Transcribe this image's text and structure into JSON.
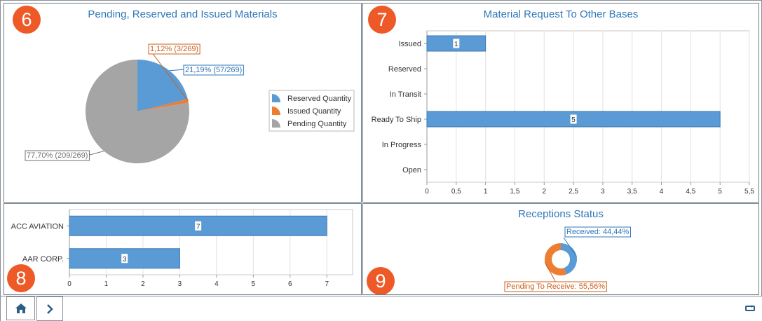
{
  "panels": {
    "p6": {
      "badge": "6",
      "title": "Pending, Reserved and Issued Materials"
    },
    "p7": {
      "badge": "7",
      "title": "Material Request To Other Bases"
    },
    "p8": {
      "badge": "8",
      "title": ""
    },
    "p9": {
      "badge": "9",
      "title": "Receptions Status"
    }
  },
  "chart_data": [
    {
      "type": "pie",
      "title": "Pending, Reserved and Issued Materials",
      "slices": [
        {
          "name": "Reserved Quantity",
          "value": 57,
          "label": "21,19% (57/269)",
          "color": "#5b9bd5"
        },
        {
          "name": "Issued Quantity",
          "value": 3,
          "label": "1,12% (3/269)",
          "color": "#ed7d31"
        },
        {
          "name": "Pending Quantity",
          "value": 209,
          "label": "77,70% (209/269)",
          "color": "#a5a5a5"
        }
      ],
      "total": 269,
      "legend": "right"
    },
    {
      "type": "bar",
      "orientation": "horizontal",
      "title": "Material Request To Other Bases",
      "categories": [
        "Issued",
        "Reserved",
        "In Transit",
        "Ready To Ship",
        "In Progress",
        "Open"
      ],
      "values": [
        1,
        0,
        0,
        5,
        0,
        0
      ],
      "data_labels": [
        "1",
        "",
        "",
        "5",
        "",
        ""
      ],
      "xlim": [
        0,
        5.5
      ],
      "ticks": [
        "0",
        "0,5",
        "1",
        "1,5",
        "2",
        "2,5",
        "3",
        "3,5",
        "4",
        "4,5",
        "5",
        "5,5"
      ],
      "grid": true,
      "color": "#5b9bd5"
    },
    {
      "type": "bar",
      "orientation": "horizontal",
      "title": "",
      "categories": [
        "ACC AVIATION",
        "AAR CORP."
      ],
      "values": [
        7,
        3
      ],
      "data_labels": [
        "7",
        "3"
      ],
      "xlim": [
        0,
        7.7
      ],
      "ticks": [
        "0",
        "1",
        "2",
        "3",
        "4",
        "5",
        "6",
        "7"
      ],
      "grid": true,
      "color": "#5b9bd5"
    },
    {
      "type": "pie",
      "variant": "donut",
      "title": "Receptions Status",
      "slices": [
        {
          "name": "Received",
          "value": 44.44,
          "label": "Received: 44,44%",
          "color": "#5b9bd5"
        },
        {
          "name": "Pending To Receive",
          "value": 55.56,
          "label": "Pending To Receive: 55,56%",
          "color": "#ed7d31"
        }
      ]
    }
  ],
  "colors": {
    "accent": "#2f77b8",
    "badge": "#ee5a27",
    "bar": "#5b9bd5"
  },
  "bottom_bar": {
    "home_icon": "home-icon",
    "next_icon": "chevron-right-icon",
    "swap_icon": "swap-icon"
  }
}
